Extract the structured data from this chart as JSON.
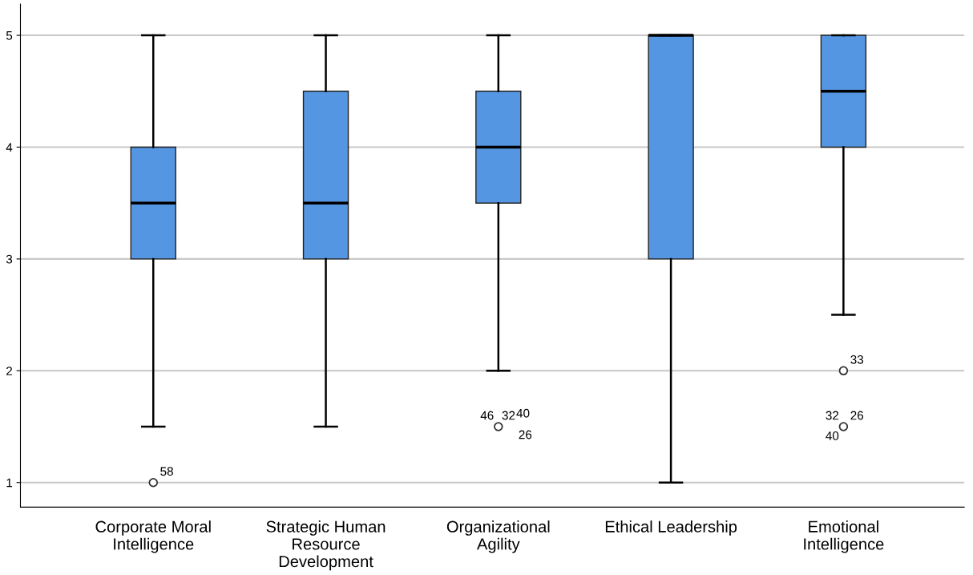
{
  "chart_data": {
    "type": "box",
    "categories": [
      "Corporate Moral\nIntelligence",
      "Strategic Human\nResource\nDevelopment",
      "Organizational\nAgility",
      "Ethical Leadership",
      "Emotional\nIntelligence"
    ],
    "color": "#5596e3",
    "boxes": [
      {
        "low": 1.5,
        "q1": 3,
        "median": 3.5,
        "q3": 4,
        "high": 5,
        "outliers": [
          1
        ]
      },
      {
        "low": 1.5,
        "q1": 3,
        "median": 3.5,
        "q3": 4.5,
        "high": 5
      },
      {
        "low": 2,
        "q1": 3.5,
        "median": 4,
        "q3": 4.5,
        "high": 5,
        "outliers": [
          1.5
        ]
      },
      {
        "low": 1,
        "q1": 3,
        "median": 5,
        "q3": 5,
        "high": 5
      },
      {
        "low": 2.5,
        "q1": 4,
        "median": 4.5,
        "q3": 5,
        "high": 5,
        "outliers": [
          2,
          1.5
        ]
      }
    ],
    "annotations": [
      "58",
      "46",
      "32",
      "40",
      "26",
      "33",
      "32",
      "26",
      "40"
    ],
    "ylim": [
      0.78,
      5.28
    ],
    "yticks": [
      1,
      2,
      3,
      4,
      5
    ],
    "grid": "y"
  }
}
